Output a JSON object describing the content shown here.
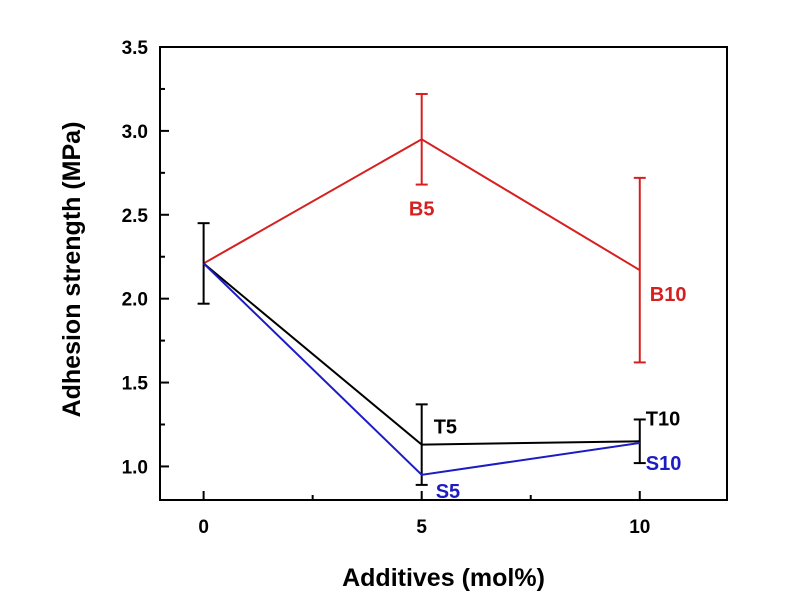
{
  "chart_data": {
    "type": "line",
    "xlabel": "Additives (mol%)",
    "ylabel": "Adhesion strength (MPa)",
    "xlim": [
      -1.0,
      12.0
    ],
    "ylim": [
      0.8,
      3.5
    ],
    "xticks": [
      0,
      5,
      10
    ],
    "yticks": [
      1.0,
      1.5,
      2.0,
      2.5,
      3.0,
      3.5
    ],
    "ytick_labels": [
      "1.0",
      "1.5",
      "2.0",
      "2.5",
      "3.0",
      "3.5"
    ],
    "grid": false,
    "series": [
      {
        "name": "B",
        "color": "#d62020",
        "x": [
          0,
          5,
          10
        ],
        "y": [
          2.21,
          2.95,
          2.17
        ],
        "error": [
          null,
          0.27,
          0.55
        ],
        "point_labels": [
          "",
          "B5",
          "B10"
        ]
      },
      {
        "name": "T",
        "color": "#000000",
        "x": [
          0,
          5,
          10
        ],
        "y": [
          2.21,
          1.13,
          1.15
        ],
        "error": [
          0.24,
          0.24,
          0.13
        ],
        "point_labels": [
          "",
          "T5",
          "T10"
        ]
      },
      {
        "name": "S",
        "color": "#1c1cc4",
        "x": [
          0,
          5,
          10
        ],
        "y": [
          2.21,
          0.95,
          1.14
        ],
        "error": [
          null,
          null,
          null
        ],
        "point_labels": [
          "",
          "S5",
          "S10"
        ]
      }
    ]
  }
}
